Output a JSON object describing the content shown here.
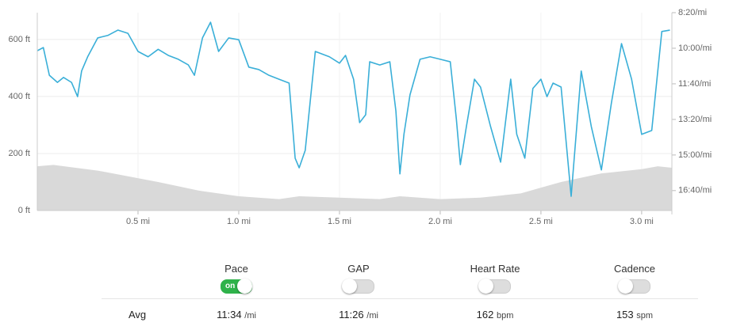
{
  "chart_data": {
    "type": "line",
    "xlim": [
      0,
      3.15
    ],
    "xticks": [
      {
        "value": 0.5,
        "label": "0.5 mi"
      },
      {
        "value": 1.0,
        "label": "1.0 mi"
      },
      {
        "value": 1.5,
        "label": "1.5 mi"
      },
      {
        "value": 2.0,
        "label": "2.0 mi"
      },
      {
        "value": 2.5,
        "label": "2.5 mi"
      },
      {
        "value": 3.0,
        "label": "3.0 mi"
      }
    ],
    "ylim": [
      0,
      694
    ],
    "yticks": [
      {
        "value": 0,
        "label": "0 ft"
      },
      {
        "value": 200,
        "label": "200 ft"
      },
      {
        "value": 400,
        "label": "400 ft"
      },
      {
        "value": 600,
        "label": "600 ft"
      }
    ],
    "y2lim": [
      1056,
      500
    ],
    "y2ticks": [
      {
        "value": 500,
        "label": "8:20/mi"
      },
      {
        "value": 600,
        "label": "10:00/mi"
      },
      {
        "value": 700,
        "label": "11:40/mi"
      },
      {
        "value": 800,
        "label": "13:20/mi"
      },
      {
        "value": 900,
        "label": "15:00/mi"
      },
      {
        "value": 1000,
        "label": "16:40/mi"
      }
    ],
    "grid": true,
    "series": [
      {
        "kind": "area",
        "color": "#d9d9d9",
        "x": [
          0,
          0.08,
          0.3,
          0.6,
          0.8,
          1.0,
          1.2,
          1.3,
          1.5,
          1.7,
          1.8,
          2.0,
          2.2,
          2.4,
          2.5,
          2.6,
          2.8,
          3.0,
          3.08,
          3.15
        ],
        "values": [
          155,
          160,
          140,
          100,
          70,
          50,
          40,
          50,
          45,
          40,
          50,
          40,
          45,
          60,
          80,
          100,
          130,
          145,
          155,
          150
        ]
      },
      {
        "kind": "line",
        "color": "#3aafd8",
        "axis": "y2",
        "x": [
          0,
          0.03,
          0.06,
          0.1,
          0.13,
          0.17,
          0.2,
          0.22,
          0.25,
          0.3,
          0.35,
          0.4,
          0.45,
          0.5,
          0.55,
          0.6,
          0.65,
          0.7,
          0.75,
          0.78,
          0.82,
          0.86,
          0.9,
          0.95,
          1.0,
          1.05,
          1.1,
          1.15,
          1.2,
          1.25,
          1.28,
          1.3,
          1.33,
          1.38,
          1.45,
          1.5,
          1.53,
          1.57,
          1.6,
          1.63,
          1.65,
          1.7,
          1.75,
          1.78,
          1.8,
          1.82,
          1.85,
          1.9,
          1.95,
          2.0,
          2.05,
          2.08,
          2.1,
          2.13,
          2.17,
          2.2,
          2.25,
          2.3,
          2.35,
          2.38,
          2.42,
          2.46,
          2.5,
          2.53,
          2.56,
          2.6,
          2.65,
          2.7,
          2.75,
          2.8,
          2.85,
          2.9,
          2.95,
          3.0,
          3.05,
          3.1,
          3.14
        ],
        "values": [
          607,
          598,
          676,
          696,
          682,
          696,
          736,
          664,
          624,
          571,
          564,
          549,
          558,
          609,
          624,
          603,
          620,
          631,
          647,
          676,
          571,
          527,
          609,
          571,
          576,
          653,
          660,
          676,
          687,
          698,
          909,
          936,
          887,
          609,
          624,
          642,
          620,
          687,
          809,
          787,
          638,
          647,
          638,
          776,
          953,
          842,
          731,
          631,
          624,
          631,
          638,
          798,
          927,
          820,
          687,
          709,
          820,
          920,
          687,
          842,
          909,
          713,
          687,
          736,
          698,
          709,
          1016,
          664,
          820,
          942,
          753,
          587,
          687,
          842,
          831,
          553,
          549
        ]
      }
    ]
  },
  "controls": [
    {
      "label": "Pace",
      "on": true,
      "state_label": "on"
    },
    {
      "label": "GAP",
      "on": false
    },
    {
      "label": "Heart Rate",
      "on": false
    },
    {
      "label": "Cadence",
      "on": false
    }
  ],
  "summary": {
    "label": "Avg",
    "values": [
      {
        "value": "11:34",
        "unit": "/mi"
      },
      {
        "value": "11:26",
        "unit": "/mi"
      },
      {
        "value": "162",
        "unit": "bpm"
      },
      {
        "value": "153",
        "unit": "spm"
      }
    ]
  }
}
